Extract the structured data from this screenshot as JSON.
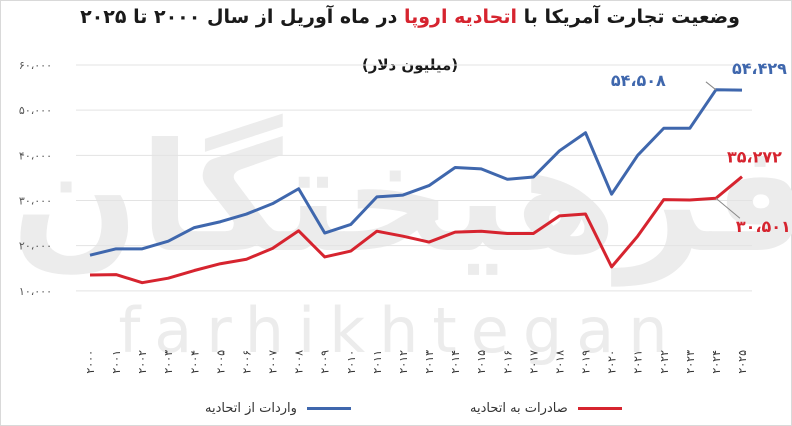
{
  "chart_data": {
    "type": "line",
    "title_prefix": "وضعیت تجارت آمریکا با ",
    "title_highlight": "اتحادیه اروپا",
    "title_suffix": " در ماه آوریل از سال ۲۰۰۰ تا ۲۰۲۵",
    "subtitle": "(میلیون دلار)",
    "y_ticks": [
      "۱۰،۰۰۰",
      "۲۰،۰۰۰",
      "۳۰،۰۰۰",
      "۴۰،۰۰۰",
      "۵۰،۰۰۰",
      "۶۰،۰۰۰"
    ],
    "ylim": [
      10000,
      60000
    ],
    "grid": true,
    "legend_position": "bottom",
    "categories": [
      "۲۰۰۰",
      "۲۰۰۱",
      "۲۰۰۲",
      "۲۰۰۳",
      "۲۰۰۴",
      "۲۰۰۵",
      "۲۰۰۶",
      "۲۰۰۷",
      "۲۰۰۸",
      "۲۰۰۹",
      "۲۰۱۰",
      "۲۰۱۱",
      "۲۰۱۲",
      "۲۰۱۳",
      "۲۰۱۴",
      "۲۰۱۵",
      "۲۰۱۶",
      "۲۰۱۷",
      "۲۰۱۸",
      "۲۰۱۹",
      "۲۰۲۰",
      "۲۰۲۱",
      "۲۰۲۲",
      "۲۰۲۳",
      "۲۰۲۴",
      "۲۰۲۵"
    ],
    "series": [
      {
        "name": "واردات از اتحادیه",
        "color": "#3f67ad",
        "values": [
          17900,
          19300,
          19300,
          21000,
          24000,
          25300,
          27000,
          29300,
          32600,
          22800,
          24700,
          30800,
          31200,
          33300,
          37300,
          37000,
          34700,
          35200,
          41000,
          45000,
          31400,
          40000,
          46000,
          46000,
          54508,
          54429
        ]
      },
      {
        "name": "صادرات به اتحادیه",
        "color": "#d6242f",
        "values": [
          13500,
          13600,
          11800,
          12800,
          14500,
          16000,
          17000,
          19400,
          23300,
          17500,
          18800,
          23200,
          22100,
          20800,
          23000,
          23200,
          22700,
          22700,
          26600,
          27000,
          15300,
          22100,
          30200,
          30100,
          30501,
          35272
        ]
      }
    ],
    "annotations": [
      {
        "text": "۵۴،۴۲۹",
        "series": 0,
        "index": 25,
        "color": "#3f67ad"
      },
      {
        "text": "۵۴،۵۰۸",
        "series": 0,
        "index": 24,
        "color": "#3f67ad"
      },
      {
        "text": "۳۵،۲۷۲",
        "series": 1,
        "index": 25,
        "color": "#d6242f"
      },
      {
        "text": "۳۰،۵۰۱",
        "series": 1,
        "index": 24,
        "color": "#d6242f"
      }
    ]
  },
  "watermark": {
    "brand_fa": "فرهیختگان",
    "brand_en": "farhikhtegan"
  }
}
